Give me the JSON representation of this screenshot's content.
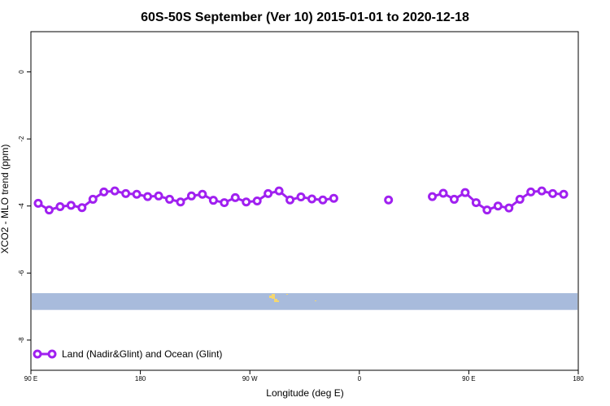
{
  "chart_data": {
    "type": "line",
    "title": "60S-50S September (Ver 10)   2015-01-01 to 2020-12-18",
    "xlabel": "Longitude (deg E)",
    "ylabel": "XCO2 - MLO trend (ppm)",
    "xlim": [
      -90,
      180
    ],
    "ylim": [
      -8.9,
      1.2
    ],
    "xticks": [
      {
        "value": -90,
        "label": "90 E"
      },
      {
        "value": -36,
        "label": "180"
      },
      {
        "value": 18,
        "label": "90 W"
      },
      {
        "value": 72,
        "label": "0"
      },
      {
        "value": 126,
        "label": "90 E"
      },
      {
        "value": 180,
        "label": "180"
      }
    ],
    "yticks": [
      {
        "value": 0,
        "label": "0"
      },
      {
        "value": -2,
        "label": "-2"
      },
      {
        "value": -4,
        "label": "-4"
      },
      {
        "value": -6,
        "label": "-6"
      },
      {
        "value": -8,
        "label": "-8"
      }
    ],
    "grid": false,
    "legend_position": "bottom-left",
    "series": [
      {
        "name": "Land (Nadir&Glint) and Ocean (Glint)",
        "color": "#a020f0",
        "x": [
          -86.4,
          -81,
          -75.6,
          -70.2,
          -64.8,
          -59.4,
          -54,
          -48.6,
          -43.2,
          -37.8,
          -32.4,
          -27,
          -21.6,
          -16.2,
          -10.8,
          -5.4,
          0,
          5.4,
          10.8,
          16.2,
          21.6,
          27,
          32.4,
          37.8,
          43.2,
          48.6,
          54,
          59.4,
          64.8,
          70.2,
          75.6,
          81,
          86.4,
          91.8,
          97.2,
          102.6,
          108,
          113.4,
          118.8,
          124.2,
          129.6,
          135,
          140.4,
          145.8,
          151.2,
          156.6,
          162,
          167.4,
          172.8,
          178.2
        ],
        "y": [
          -3.92,
          -4.12,
          -4.02,
          -3.98,
          -4.05,
          -3.8,
          -3.58,
          -3.55,
          -3.63,
          -3.65,
          -3.72,
          -3.7,
          -3.8,
          -3.88,
          -3.7,
          -3.65,
          -3.83,
          -3.9,
          -3.75,
          -3.88,
          -3.85,
          -3.63,
          -3.55,
          -3.82,
          -3.73,
          -3.79,
          -3.82,
          -3.77,
          null,
          null,
          null,
          null,
          -3.82,
          null,
          null,
          null,
          -3.72,
          -3.62,
          -3.8,
          -3.6,
          -3.9,
          -4.12,
          -4.0,
          -4.06,
          -3.8,
          -3.58,
          -3.55,
          -3.63,
          -3.65,
          null
        ]
      }
    ],
    "land_band": {
      "y_range": [
        -7.1,
        -6.6
      ],
      "color": "#a8bbdc",
      "land_color": "#f5d76e"
    }
  }
}
